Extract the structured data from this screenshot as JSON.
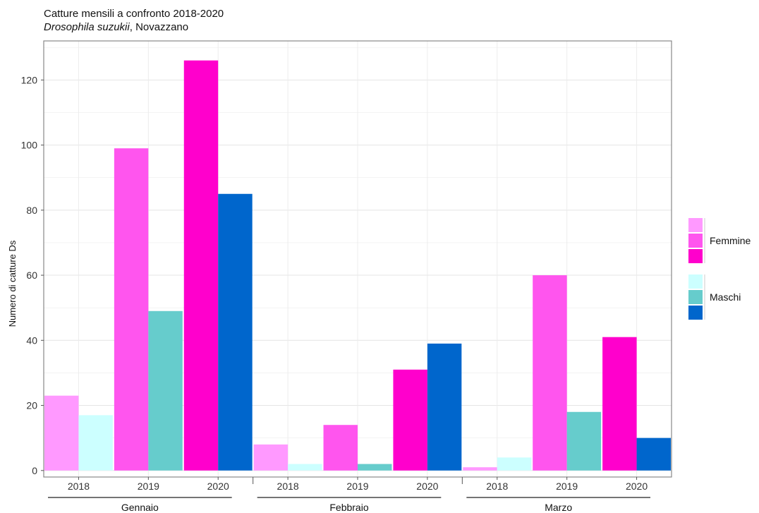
{
  "chart_data": {
    "type": "bar",
    "title": "Catture mensili a confronto 2018-2020",
    "subtitle_species": "Drosophila suzukii",
    "subtitle_rest": ", Novazzano",
    "ylabel": "Numero di catture Ds",
    "ylim": [
      -2,
      132
    ],
    "yticks": [
      0,
      20,
      40,
      60,
      80,
      100,
      120
    ],
    "grid": true,
    "legend_position": "right",
    "groups": [
      {
        "month": "Gennaio",
        "years": [
          {
            "year": "2018",
            "femmine": 23,
            "maschi": 17
          },
          {
            "year": "2019",
            "femmine": 99,
            "maschi": 49
          },
          {
            "year": "2020",
            "femmine": 126,
            "maschi": 85
          }
        ]
      },
      {
        "month": "Febbraio",
        "years": [
          {
            "year": "2018",
            "femmine": 8,
            "maschi": 2
          },
          {
            "year": "2019",
            "femmine": 14,
            "maschi": 2
          },
          {
            "year": "2020",
            "femmine": 31,
            "maschi": 39
          }
        ]
      },
      {
        "month": "Marzo",
        "years": [
          {
            "year": "2018",
            "femmine": 1,
            "maschi": 4
          },
          {
            "year": "2019",
            "femmine": 60,
            "maschi": 18
          },
          {
            "year": "2020",
            "femmine": 41,
            "maschi": 10
          }
        ]
      }
    ],
    "colors": {
      "femmine": {
        "2018": "#ff99ff",
        "2019": "#ff55ee",
        "2020": "#ff00cc"
      },
      "maschi": {
        "2018": "#ccffff",
        "2019": "#66cccc",
        "2020": "#0066cc"
      }
    },
    "legend": {
      "femmine_label": "Femmine",
      "maschi_label": "Maschi"
    }
  }
}
